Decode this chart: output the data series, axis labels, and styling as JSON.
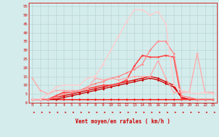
{
  "x": [
    0,
    1,
    2,
    3,
    4,
    5,
    6,
    7,
    8,
    9,
    10,
    11,
    12,
    13,
    14,
    15,
    16,
    17,
    18,
    19,
    20,
    21,
    22,
    23
  ],
  "series": [
    {
      "color": "#ff0000",
      "values": [
        2,
        2,
        2,
        2,
        2,
        2,
        2,
        2,
        2,
        2,
        2,
        2,
        2,
        2,
        2,
        2,
        2,
        2,
        2,
        2,
        2,
        2,
        2,
        2
      ],
      "lw": 1.0
    },
    {
      "color": "#cc0000",
      "values": [
        2,
        2,
        2,
        2,
        3,
        4,
        5,
        6,
        7,
        8,
        9,
        10,
        11,
        12,
        13,
        14,
        13,
        11,
        9,
        3,
        2,
        2,
        2,
        2
      ],
      "lw": 1.0
    },
    {
      "color": "#dd0000",
      "values": [
        2,
        2,
        2,
        3,
        4,
        5,
        6,
        7,
        8,
        9,
        10,
        11,
        12,
        13,
        14,
        15,
        14,
        12,
        10,
        3,
        2,
        2,
        2,
        2
      ],
      "lw": 1.0
    },
    {
      "color": "#ff4444",
      "values": [
        2,
        2,
        2,
        4,
        6,
        6,
        7,
        8,
        9,
        10,
        10,
        11,
        13,
        21,
        27,
        26,
        26,
        27,
        26,
        2,
        2,
        2,
        2,
        2
      ],
      "lw": 1.2
    },
    {
      "color": "#ff8888",
      "values": [
        2,
        2,
        2,
        3,
        5,
        6,
        7,
        9,
        11,
        12,
        14,
        15,
        17,
        19,
        22,
        30,
        35,
        35,
        28,
        4,
        3,
        2,
        2,
        2
      ],
      "lw": 1.0
    },
    {
      "color": "#ffaaaa",
      "values": [
        14,
        7,
        5,
        7,
        7,
        7,
        7,
        8,
        14,
        13,
        14,
        13,
        14,
        15,
        15,
        15,
        24,
        14,
        6,
        6,
        6,
        28,
        6,
        6
      ],
      "lw": 1.0
    },
    {
      "color": "#ffcccc",
      "values": [
        2,
        2,
        5,
        9,
        10,
        10,
        10,
        14,
        15,
        22,
        30,
        38,
        46,
        53,
        53,
        50,
        52,
        45,
        10,
        7,
        6,
        5,
        6,
        5
      ],
      "lw": 1.0
    }
  ],
  "yticks": [
    0,
    5,
    10,
    15,
    20,
    25,
    30,
    35,
    40,
    45,
    50,
    55
  ],
  "xticks": [
    0,
    1,
    2,
    3,
    4,
    5,
    6,
    7,
    8,
    9,
    10,
    11,
    12,
    13,
    14,
    15,
    16,
    17,
    18,
    19,
    20,
    21,
    22,
    23
  ],
  "xlabel": "Vent moyen/en rafales ( km/h )",
  "bg_color": "#d4ecec",
  "grid_color": "#b8d4d4",
  "tick_color": "#cc0000",
  "label_color": "#cc0000",
  "arrow_color": "#cc0000",
  "spine_color": "#cc0000"
}
